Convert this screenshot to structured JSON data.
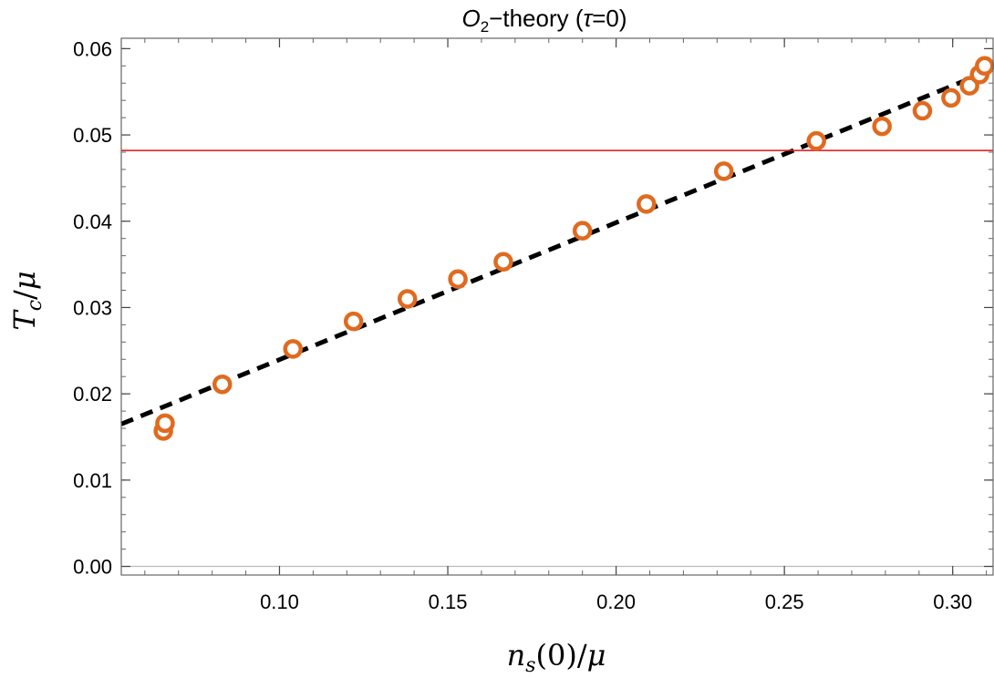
{
  "chart_data": {
    "type": "scatter",
    "title": {
      "main": "O",
      "sub": "2",
      "rest": "−theory (",
      "greek": "τ",
      "tail": "=0)"
    },
    "xlabel": {
      "n": "n",
      "sub": "s",
      "rest": "(0)/",
      "mu": "μ"
    },
    "ylabel": {
      "T": "T",
      "sub": "c",
      "rest": "/",
      "mu": "μ"
    },
    "xlim": [
      0.053,
      0.312
    ],
    "ylim": [
      -0.001,
      0.0612
    ],
    "x_ticks": [
      {
        "value": 0.1,
        "label": "0.10"
      },
      {
        "value": 0.15,
        "label": "0.15"
      },
      {
        "value": 0.2,
        "label": "0.20"
      },
      {
        "value": 0.25,
        "label": "0.25"
      },
      {
        "value": 0.3,
        "label": "0.30"
      }
    ],
    "y_ticks": [
      {
        "value": 0.0,
        "label": "0.00"
      },
      {
        "value": 0.01,
        "label": "0.01"
      },
      {
        "value": 0.02,
        "label": "0.02"
      },
      {
        "value": 0.03,
        "label": "0.03"
      },
      {
        "value": 0.04,
        "label": "0.04"
      },
      {
        "value": 0.05,
        "label": "0.05"
      },
      {
        "value": 0.06,
        "label": "0.06"
      }
    ],
    "x_minor_step": 0.01,
    "y_minor_step": 0.002,
    "series": [
      {
        "kind": "points",
        "marker": "open-circle",
        "color": "#E06A1F",
        "points": [
          {
            "x": 0.0655,
            "y": 0.0157
          },
          {
            "x": 0.066,
            "y": 0.0166
          },
          {
            "x": 0.083,
            "y": 0.0211
          },
          {
            "x": 0.104,
            "y": 0.0252
          },
          {
            "x": 0.122,
            "y": 0.0284
          },
          {
            "x": 0.138,
            "y": 0.031
          },
          {
            "x": 0.153,
            "y": 0.0333
          },
          {
            "x": 0.1665,
            "y": 0.0353
          },
          {
            "x": 0.19,
            "y": 0.0389
          },
          {
            "x": 0.209,
            "y": 0.042
          },
          {
            "x": 0.232,
            "y": 0.0458
          },
          {
            "x": 0.2595,
            "y": 0.0493
          },
          {
            "x": 0.279,
            "y": 0.051
          },
          {
            "x": 0.291,
            "y": 0.0528
          },
          {
            "x": 0.2995,
            "y": 0.0543
          },
          {
            "x": 0.305,
            "y": 0.0557
          },
          {
            "x": 0.308,
            "y": 0.057
          },
          {
            "x": 0.3095,
            "y": 0.058
          }
        ]
      },
      {
        "kind": "fit-line",
        "style": "dashed",
        "color": "#000000",
        "points": [
          {
            "x": 0.053,
            "y": 0.0165
          },
          {
            "x": 0.31,
            "y": 0.0573
          }
        ]
      },
      {
        "kind": "reference-line",
        "style": "solid",
        "color": "#E01010",
        "y": 0.0482
      }
    ],
    "grid": false,
    "legend": "none"
  }
}
